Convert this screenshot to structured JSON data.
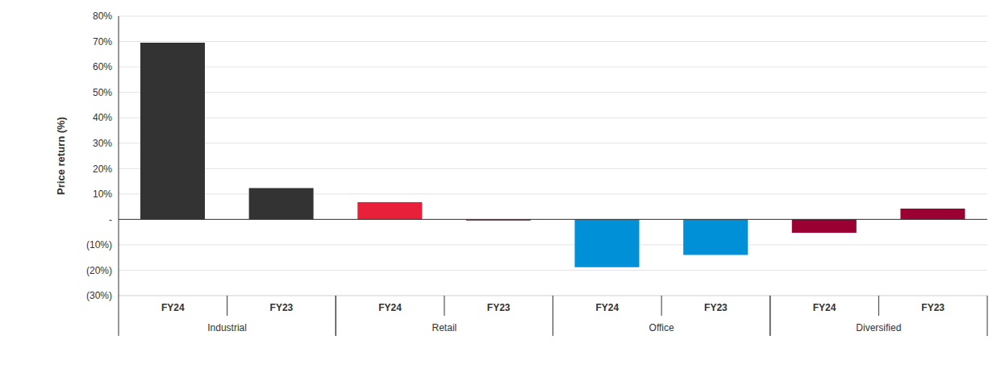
{
  "chart_data": {
    "type": "bar",
    "y_label": "Price return (%)",
    "categories": [
      "FY24",
      "FY23",
      "FY24",
      "FY23",
      "FY24",
      "FY23",
      "FY24",
      "FY23"
    ],
    "groups": [
      "Industrial",
      "Industrial",
      "Retail",
      "Retail",
      "Office",
      "Office",
      "Diversified",
      "Diversified"
    ],
    "values": [
      69.5,
      12.3,
      6.8,
      -0.5,
      -18.8,
      -14,
      -5.3,
      4.2
    ],
    "colors": [
      "#333333",
      "#333333",
      "#e8203a",
      "#e8203a",
      "#0090d8",
      "#0090d8",
      "#9b0033",
      "#9b0033"
    ],
    "ylim": [
      -30,
      80
    ],
    "yticks": [
      {
        "value": -30,
        "label": "(30%)"
      },
      {
        "value": -20,
        "label": "(20%)"
      },
      {
        "value": -10,
        "label": "(10%)"
      },
      {
        "value": 0,
        "label": "-"
      },
      {
        "value": 10,
        "label": "10%"
      },
      {
        "value": 20,
        "label": "20%"
      },
      {
        "value": 30,
        "label": "30%"
      },
      {
        "value": 40,
        "label": "40%"
      },
      {
        "value": 50,
        "label": "50%"
      },
      {
        "value": 60,
        "label": "60%"
      },
      {
        "value": 70,
        "label": "70%"
      },
      {
        "value": 80,
        "label": "80%"
      }
    ],
    "grid": true
  }
}
